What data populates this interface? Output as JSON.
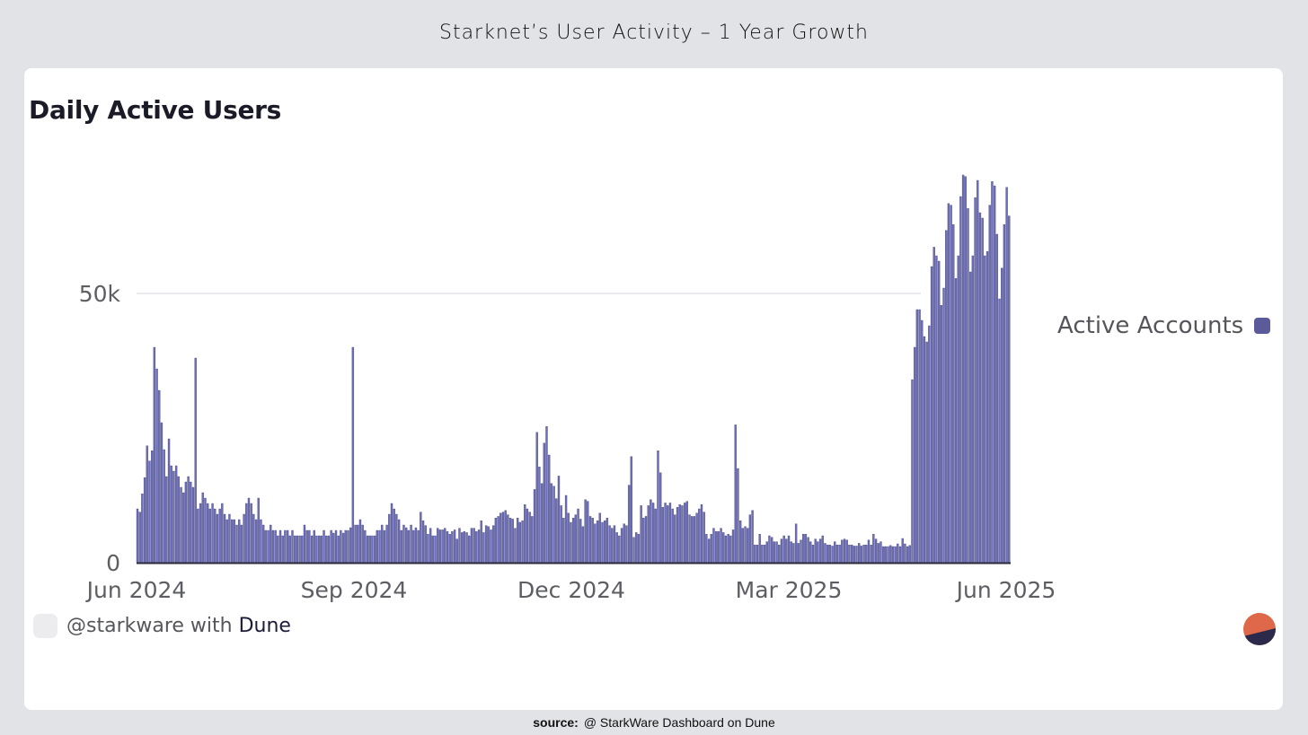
{
  "page_title": "Starknet’s User Activity – 1 Year Growth",
  "source": {
    "label": "source:",
    "text": "@ StarkWare Dashboard on Dune"
  },
  "credit": {
    "user": "@starkware with",
    "brand": "Dune"
  },
  "colors": {
    "bar": "#6e6fb5",
    "bar_edge": "#3f3f7e",
    "legend_swatch": "#5b5b9c",
    "logo_top": "#e0684a",
    "logo_bottom": "#2b2a4a"
  },
  "chart_data": {
    "type": "bar",
    "title": "Daily Active Users",
    "xlabel": "",
    "ylabel": "",
    "ylim": [
      0,
      75000
    ],
    "y_ticks": [
      {
        "value": 0,
        "label": "0"
      },
      {
        "value": 50000,
        "label": "50k"
      }
    ],
    "x_tick_labels": [
      "Jun 2024",
      "Sep 2024",
      "Dec 2024",
      "Mar 2025",
      "Jun 2025"
    ],
    "grid": "horizontal",
    "legend_position": "right",
    "series": [
      {
        "name": "Active Accounts",
        "values": [
          10000,
          9400,
          12800,
          15800,
          21700,
          18900,
          20800,
          40000,
          36000,
          32000,
          26000,
          21000,
          16000,
          23000,
          18000,
          17000,
          18000,
          16000,
          14000,
          13000,
          15000,
          16000,
          15000,
          14000,
          38000,
          10000,
          11000,
          13000,
          12000,
          11000,
          10000,
          11000,
          10000,
          9000,
          10000,
          11000,
          9000,
          8000,
          9000,
          8000,
          8000,
          7000,
          8000,
          7000,
          9000,
          11000,
          12000,
          11000,
          9000,
          8000,
          12000,
          8000,
          7000,
          6000,
          6000,
          7000,
          6000,
          6000,
          5000,
          6000,
          5000,
          6000,
          6000,
          5000,
          6000,
          5000,
          5000,
          5000,
          5000,
          7000,
          6000,
          6000,
          5000,
          6000,
          5000,
          5000,
          5000,
          6000,
          5000,
          5000,
          6000,
          5500,
          6000,
          5000,
          6000,
          5500,
          6000,
          6000,
          6500,
          40000,
          7000,
          7000,
          8000,
          7000,
          6000,
          5000,
          5000,
          5000,
          5000,
          6000,
          6000,
          7000,
          6000,
          7000,
          9000,
          11000,
          10000,
          9000,
          8000,
          6000,
          7000,
          6500,
          6000,
          7000,
          6000,
          6500,
          6000,
          9400,
          7800,
          6900,
          5300,
          6400,
          5000,
          5000,
          6400,
          6100,
          6100,
          6400,
          5800,
          5300,
          5800,
          6100,
          4400,
          6400,
          5600,
          5800,
          5600,
          5000,
          6400,
          6400,
          5800,
          6100,
          7800,
          5600,
          6900,
          6700,
          6100,
          6900,
          8300,
          8600,
          9200,
          9400,
          9700,
          8900,
          8300,
          8100,
          6400,
          8300,
          7500,
          7800,
          10800,
          10000,
          9400,
          8600,
          13600,
          24200,
          17800,
          14700,
          22200,
          25300,
          20000,
          14700,
          14200,
          11900,
          16100,
          10600,
          8300,
          12500,
          9200,
          7500,
          8300,
          8900,
          10000,
          8100,
          6700,
          11700,
          11400,
          8600,
          8300,
          7200,
          7800,
          9200,
          7500,
          7800,
          8300,
          6900,
          6400,
          6900,
          5600,
          5000,
          6400,
          7200,
          6900,
          14400,
          19700,
          4700,
          5600,
          5300,
          10600,
          8300,
          8600,
          10600,
          11700,
          11100,
          10000,
          20800,
          16700,
          10300,
          11100,
          10600,
          11100,
          10000,
          8900,
          10300,
          10800,
          10600,
          11100,
          11400,
          8900,
          8600,
          8600,
          9200,
          10000,
          10800,
          9400,
          5300,
          4400,
          5300,
          6400,
          5800,
          5800,
          6400,
          5600,
          5000,
          5300,
          5000,
          6100,
          25600,
          17500,
          7800,
          6400,
          6700,
          6400,
          8900,
          9700,
          3300,
          3300,
          5300,
          3300,
          3300,
          3900,
          5000,
          4700,
          3900,
          3900,
          3300,
          4400,
          5000,
          4400,
          5000,
          3900,
          3600,
          7200,
          3600,
          4200,
          5300,
          5300,
          4700,
          3900,
          3300,
          4400,
          3900,
          4400,
          5000,
          3600,
          3300,
          3300,
          3100,
          3900,
          3300,
          3300,
          4200,
          4400,
          4200,
          3300,
          3300,
          3100,
          3100,
          3600,
          3100,
          3300,
          3300,
          4200,
          3300,
          5300,
          4400,
          3600,
          3900,
          3000,
          3000,
          3000,
          3200,
          3000,
          3000,
          3500,
          3000,
          4500,
          3500,
          3000,
          3200,
          34000,
          40000,
          47000,
          47000,
          45000,
          42000,
          41000,
          44000,
          55000,
          58600,
          57000,
          56000,
          47800,
          51000,
          61700,
          66700,
          66400,
          62800,
          52800,
          57000,
          68000,
          72000,
          71700,
          65800,
          54000,
          57000,
          67800,
          71000,
          65000,
          64000,
          57000,
          57800,
          66400,
          70800,
          70000,
          61000,
          49000,
          54700,
          62800,
          69700,
          64400
        ]
      }
    ]
  }
}
